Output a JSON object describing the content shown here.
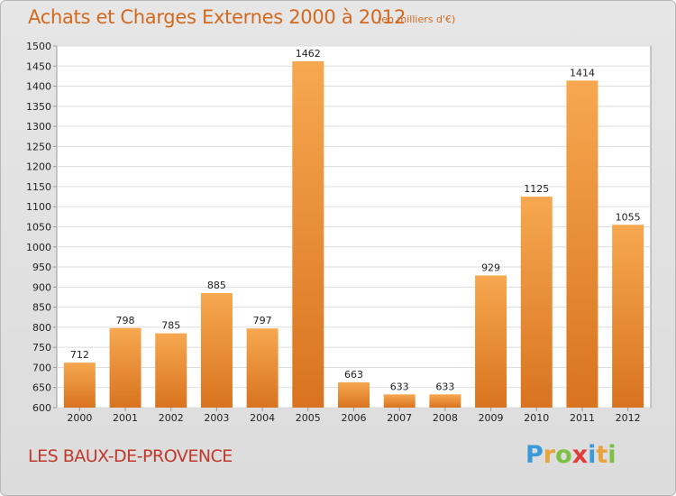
{
  "header": {
    "title": "Achats et Charges Externes 2000 à 2012",
    "subtitle": "(en milliers d'€)"
  },
  "footer": {
    "commune": "LES BAUX-DE-PROVENCE",
    "logo_letters": [
      "P",
      "r",
      "o",
      "x",
      "i",
      "t",
      "i"
    ],
    "logo_colors": [
      "#3a9ad9",
      "#e8a33d",
      "#7cc142",
      "#e23b3b",
      "#3a9ad9",
      "#e8a33d",
      "#7cc142"
    ]
  },
  "colors": {
    "bar_light": "#f6a850",
    "bar_dark": "#d9731f",
    "title": "#d2691e",
    "commune": "#c0392b"
  },
  "chart_data": {
    "type": "bar",
    "title": "Achats et Charges Externes 2000 à 2012",
    "subtitle": "(en milliers d'€)",
    "categories": [
      "2000",
      "2001",
      "2002",
      "2003",
      "2004",
      "2005",
      "2006",
      "2007",
      "2008",
      "2009",
      "2010",
      "2011",
      "2012"
    ],
    "values": [
      712,
      798,
      785,
      885,
      797,
      1462,
      663,
      633,
      633,
      929,
      1125,
      1414,
      1055
    ],
    "ylim": [
      600,
      1500
    ],
    "yticks": [
      600,
      650,
      700,
      750,
      800,
      850,
      900,
      950,
      1000,
      1050,
      1100,
      1150,
      1200,
      1250,
      1300,
      1350,
      1400,
      1450,
      1500
    ],
    "grid": true,
    "data_labels": true
  }
}
